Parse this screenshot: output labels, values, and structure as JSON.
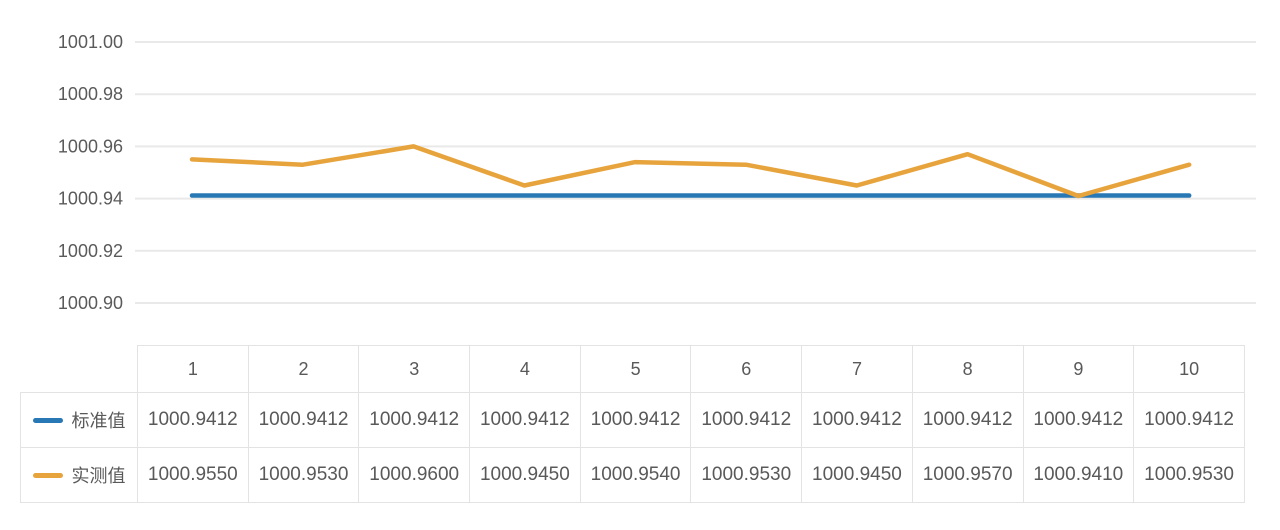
{
  "chart_data": {
    "type": "line",
    "title": "",
    "xlabel": "",
    "ylabel": "",
    "categories": [
      "1",
      "2",
      "3",
      "4",
      "5",
      "6",
      "7",
      "8",
      "9",
      "10"
    ],
    "series": [
      {
        "name": "标准值",
        "color": "#2878b5",
        "values": [
          1000.9412,
          1000.9412,
          1000.9412,
          1000.9412,
          1000.9412,
          1000.9412,
          1000.9412,
          1000.9412,
          1000.9412,
          1000.9412
        ]
      },
      {
        "name": "实测值",
        "color": "#e7a43d",
        "values": [
          1000.955,
          1000.953,
          1000.96,
          1000.945,
          1000.954,
          1000.953,
          1000.945,
          1000.957,
          1000.941,
          1000.953
        ]
      }
    ],
    "ylim": [
      1000.9,
      1001.0
    ],
    "ytick_step": 0.02,
    "yticks": [
      "1001.00",
      "1000.98",
      "1000.96",
      "1000.94",
      "1000.92",
      "1000.90"
    ],
    "grid": true,
    "legend_position": "table-left-column"
  },
  "table": {
    "header": [
      "1",
      "2",
      "3",
      "4",
      "5",
      "6",
      "7",
      "8",
      "9",
      "10"
    ],
    "rows": [
      {
        "label": "标准值",
        "swatch_color": "#2878b5",
        "values": [
          "1000.9412",
          "1000.9412",
          "1000.9412",
          "1000.9412",
          "1000.9412",
          "1000.9412",
          "1000.9412",
          "1000.9412",
          "1000.9412",
          "1000.9412"
        ]
      },
      {
        "label": "实测值",
        "swatch_color": "#e7a43d",
        "values": [
          "1000.9550",
          "1000.9530",
          "1000.9600",
          "1000.9450",
          "1000.9540",
          "1000.9530",
          "1000.9450",
          "1000.9570",
          "1000.9410",
          "1000.9530"
        ]
      }
    ]
  },
  "colors": {
    "background": "#ffffff",
    "grid_line": "#e9e9e9",
    "axis_text": "#5a5a5a",
    "table_border": "#e3e3e3",
    "table_text": "#595959",
    "standard_series": "#2878b5",
    "measured_series": "#e7a43d"
  }
}
